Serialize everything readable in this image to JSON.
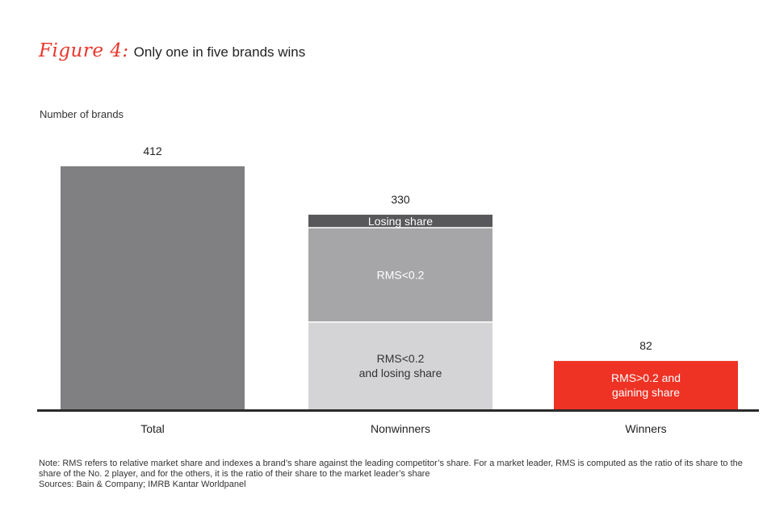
{
  "figure": {
    "label": "Figure 4:",
    "title": "Only one in five brands wins"
  },
  "chart_data": {
    "type": "bar",
    "ylabel": "Number of brands",
    "categories": [
      "Total",
      "Nonwinners",
      "Winners"
    ],
    "totals": [
      412,
      330,
      82
    ],
    "ylim": [
      0,
      412
    ],
    "grid": false,
    "bars": [
      {
        "category": "Total",
        "value": 412,
        "segments": [
          {
            "label": "",
            "value": 412,
            "color": "#808083",
            "text_color": "#ffffff"
          }
        ]
      },
      {
        "category": "Nonwinners",
        "value": 330,
        "segments": [
          {
            "label": "RMS<0.2\nand losing share",
            "value": 148,
            "color": "#d4d4d6",
            "text_color": "#333333"
          },
          {
            "label": "RMS<0.2",
            "value": 160,
            "color": "#a6a6a8",
            "text_color": "#ffffff"
          },
          {
            "label": "Losing share",
            "value": 22,
            "color": "#58585a",
            "text_color": "#ffffff"
          }
        ]
      },
      {
        "category": "Winners",
        "value": 82,
        "segments": [
          {
            "label": "RMS>0.2 and\ngaining share",
            "value": 82,
            "color": "#ee3224",
            "text_color": "#ffffff"
          }
        ]
      }
    ]
  },
  "notes": {
    "note": "Note: RMS refers to relative market share and indexes a brand’s share against the leading competitor’s share. For a market leader, RMS is computed as the ratio of its share to the share of the No. 2 player, and for the others, it is the ratio of their share to the market leader’s share",
    "sources": "Sources: Bain & Company; IMRB Kantar Worldpanel"
  }
}
